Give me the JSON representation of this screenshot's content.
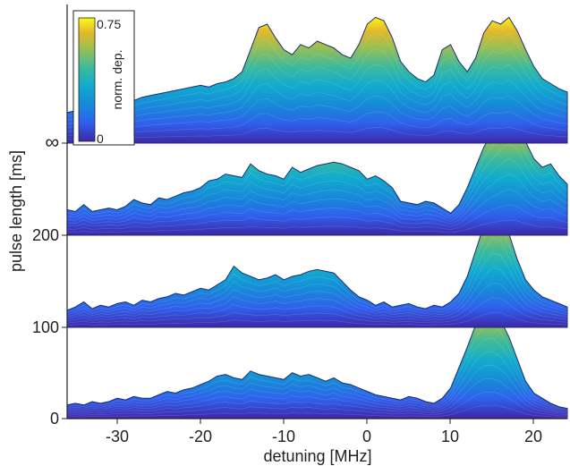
{
  "chart_data": {
    "type": "area",
    "xlabel": "detuning [MHz]",
    "ylabel": "pulse length [ms]",
    "xlim": [
      -36,
      24
    ],
    "x_ticks": [
      "-30",
      "-20",
      "-10",
      "0",
      "10",
      "20"
    ],
    "y_ticks": [
      "0",
      "100",
      "200",
      "∞"
    ],
    "colorbar": {
      "label": "norm. dep.",
      "max_label": "0.75",
      "min_label": "0",
      "range": [
        0,
        0.75
      ]
    },
    "colors": {
      "low": "#3e26a8",
      "mid": "#20a8cf",
      "high": "#f9fb15",
      "outline": "#1f2d6e"
    },
    "x": [
      -36,
      -35,
      -34,
      -33,
      -32,
      -31,
      -30,
      -29,
      -28,
      -27,
      -26,
      -25,
      -24,
      -23,
      -22,
      -21,
      -20,
      -19,
      -18,
      -17,
      -16,
      -15,
      -14,
      -13,
      -12,
      -11,
      -10,
      -9,
      -8,
      -7,
      -6,
      -5,
      -4,
      -3,
      -2,
      -1,
      0,
      1,
      2,
      3,
      4,
      5,
      6,
      7,
      8,
      9,
      10,
      11,
      12,
      13,
      14,
      15,
      16,
      17,
      18,
      19,
      20,
      21,
      22,
      23,
      24
    ],
    "series": [
      {
        "pulse_length": "0",
        "values": [
          0.08,
          0.09,
          0.08,
          0.1,
          0.09,
          0.1,
          0.12,
          0.11,
          0.13,
          0.12,
          0.12,
          0.14,
          0.16,
          0.15,
          0.17,
          0.18,
          0.2,
          0.22,
          0.25,
          0.26,
          0.24,
          0.23,
          0.28,
          0.26,
          0.25,
          0.24,
          0.23,
          0.27,
          0.25,
          0.26,
          0.24,
          0.22,
          0.24,
          0.21,
          0.2,
          0.18,
          0.16,
          0.14,
          0.13,
          0.12,
          0.11,
          0.13,
          0.12,
          0.1,
          0.09,
          0.12,
          0.18,
          0.3,
          0.42,
          0.55,
          0.62,
          0.63,
          0.58,
          0.48,
          0.35,
          0.22,
          0.15,
          0.12,
          0.09,
          0.07,
          0.06
        ]
      },
      {
        "pulse_length": "100",
        "values": [
          0.1,
          0.12,
          0.15,
          0.11,
          0.13,
          0.12,
          0.14,
          0.15,
          0.13,
          0.16,
          0.15,
          0.17,
          0.18,
          0.2,
          0.19,
          0.21,
          0.23,
          0.22,
          0.25,
          0.28,
          0.36,
          0.32,
          0.3,
          0.28,
          0.29,
          0.31,
          0.28,
          0.3,
          0.31,
          0.33,
          0.34,
          0.33,
          0.32,
          0.27,
          0.22,
          0.18,
          0.16,
          0.13,
          0.15,
          0.12,
          0.13,
          0.14,
          0.12,
          0.11,
          0.13,
          0.12,
          0.15,
          0.2,
          0.3,
          0.45,
          0.6,
          0.7,
          0.68,
          0.55,
          0.4,
          0.28,
          0.22,
          0.18,
          0.16,
          0.14,
          0.12
        ]
      },
      {
        "pulse_length": "200",
        "values": [
          0.15,
          0.14,
          0.18,
          0.14,
          0.15,
          0.16,
          0.15,
          0.17,
          0.21,
          0.19,
          0.18,
          0.22,
          0.21,
          0.23,
          0.25,
          0.26,
          0.28,
          0.32,
          0.33,
          0.36,
          0.35,
          0.34,
          0.42,
          0.38,
          0.36,
          0.35,
          0.33,
          0.4,
          0.37,
          0.39,
          0.41,
          0.42,
          0.43,
          0.42,
          0.4,
          0.38,
          0.33,
          0.35,
          0.32,
          0.28,
          0.2,
          0.19,
          0.18,
          0.2,
          0.19,
          0.16,
          0.13,
          0.18,
          0.28,
          0.4,
          0.52,
          0.6,
          0.67,
          0.72,
          0.68,
          0.55,
          0.45,
          0.4,
          0.42,
          0.35,
          0.3
        ]
      },
      {
        "pulse_length": "∞",
        "values": [
          0.18,
          0.19,
          0.2,
          0.22,
          0.21,
          0.24,
          0.23,
          0.26,
          0.25,
          0.27,
          0.28,
          0.29,
          0.3,
          0.31,
          0.32,
          0.33,
          0.34,
          0.33,
          0.35,
          0.36,
          0.38,
          0.42,
          0.55,
          0.68,
          0.7,
          0.62,
          0.55,
          0.52,
          0.58,
          0.56,
          0.6,
          0.58,
          0.56,
          0.52,
          0.5,
          0.58,
          0.7,
          0.74,
          0.72,
          0.62,
          0.48,
          0.42,
          0.38,
          0.36,
          0.4,
          0.55,
          0.58,
          0.48,
          0.42,
          0.5,
          0.65,
          0.72,
          0.7,
          0.74,
          0.66,
          0.55,
          0.45,
          0.38,
          0.35,
          0.32,
          0.3
        ]
      }
    ]
  }
}
